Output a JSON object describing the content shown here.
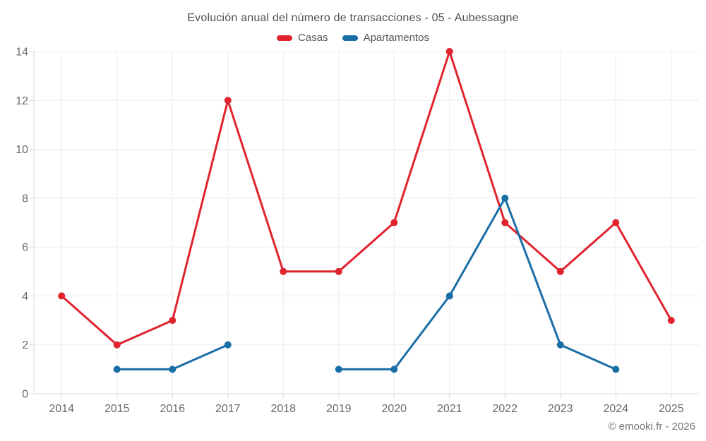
{
  "chart_data": {
    "type": "line",
    "title": "Evolución anual del número de transacciones - 05 - Aubessagne",
    "categories": [
      "2014",
      "2015",
      "2016",
      "2017",
      "2018",
      "2019",
      "2020",
      "2021",
      "2022",
      "2023",
      "2024",
      "2025"
    ],
    "series": [
      {
        "name": "Casas",
        "color": "#e1232d",
        "values": [
          4,
          2,
          3,
          12,
          5,
          5,
          7,
          14,
          7,
          5,
          7,
          3
        ]
      },
      {
        "name": "Apartamentos",
        "color": "#1a6ea6",
        "values": [
          null,
          1,
          1,
          2,
          null,
          1,
          1,
          4,
          8,
          2,
          1,
          null
        ]
      }
    ],
    "xlabel": "",
    "ylabel": "",
    "ylim": [
      0,
      14
    ],
    "yticks": [
      0,
      2,
      4,
      6,
      8,
      10,
      12,
      14
    ],
    "grid": true,
    "legend_position": "top"
  },
  "footer": {
    "credit": "© emooki.fr - 2026"
  },
  "colors": {
    "grid": "#ececec",
    "axis_border": "#d9d9d9",
    "tick_text": "#6b6b6b"
  }
}
